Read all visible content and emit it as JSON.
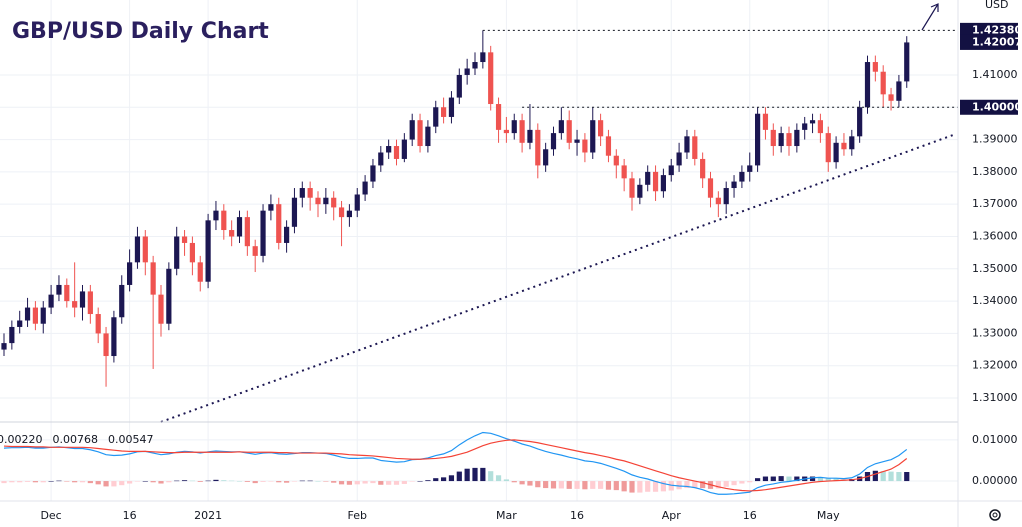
{
  "chart_data": [
    {
      "type": "candlestick",
      "title": "GBP/USD Daily Chart",
      "y_axis_label": "USD",
      "categories": [
        null,
        null,
        null,
        null,
        null,
        null,
        "Dec",
        null,
        null,
        null,
        null,
        null,
        null,
        null,
        null,
        null,
        "16",
        null,
        null,
        null,
        null,
        null,
        null,
        null,
        null,
        null,
        "2021",
        null,
        null,
        null,
        null,
        null,
        null,
        null,
        null,
        null,
        null,
        null,
        null,
        null,
        null,
        null,
        null,
        null,
        null,
        "Feb",
        null,
        null,
        null,
        null,
        null,
        null,
        null,
        null,
        null,
        null,
        null,
        null,
        null,
        null,
        null,
        null,
        null,
        null,
        "Mar",
        null,
        null,
        null,
        null,
        null,
        null,
        null,
        null,
        "16",
        null,
        null,
        null,
        null,
        null,
        null,
        null,
        null,
        null,
        null,
        null,
        "Apr",
        null,
        null,
        null,
        null,
        null,
        null,
        null,
        null,
        null,
        "16",
        null,
        null,
        null,
        null,
        null,
        null,
        null,
        null,
        null,
        "May",
        null,
        null,
        null,
        null,
        null,
        null,
        null,
        null,
        null,
        null
      ],
      "open": [
        1.325,
        1.327,
        1.332,
        1.334,
        1.338,
        1.333,
        1.338,
        1.342,
        1.345,
        1.34,
        1.338,
        1.343,
        1.336,
        1.33,
        1.323,
        1.335,
        1.345,
        1.352,
        1.36,
        1.352,
        1.342,
        1.333,
        1.35,
        1.36,
        1.358,
        1.352,
        1.346,
        1.365,
        1.368,
        1.362,
        1.36,
        1.366,
        1.357,
        1.354,
        1.368,
        1.37,
        1.358,
        1.363,
        1.372,
        1.375,
        1.372,
        1.37,
        1.372,
        1.369,
        1.366,
        1.368,
        1.373,
        1.377,
        1.382,
        1.386,
        1.388,
        1.384,
        1.39,
        1.396,
        1.388,
        1.394,
        1.4,
        1.397,
        1.403,
        1.41,
        1.412,
        1.414,
        1.417,
        1.401,
        1.393,
        1.392,
        1.396,
        1.389,
        1.393,
        1.382,
        1.387,
        1.392,
        1.396,
        1.389,
        1.39,
        1.386,
        1.396,
        1.391,
        1.385,
        1.382,
        1.378,
        1.372,
        1.376,
        1.38,
        1.374,
        1.379,
        1.382,
        1.386,
        1.391,
        1.384,
        1.378,
        1.372,
        1.37,
        1.375,
        1.377,
        1.38,
        1.382,
        1.398,
        1.393,
        1.388,
        1.392,
        1.388,
        1.393,
        1.395,
        1.396,
        1.392,
        1.383,
        1.389,
        1.387,
        1.391,
        1.4,
        1.414,
        1.411,
        1.404,
        1.402,
        1.408
      ],
      "high": [
        1.33,
        1.334,
        1.337,
        1.341,
        1.34,
        1.34,
        1.345,
        1.348,
        1.347,
        1.352,
        1.345,
        1.345,
        1.338,
        1.332,
        1.337,
        1.348,
        1.356,
        1.363,
        1.362,
        1.354,
        1.345,
        1.352,
        1.363,
        1.362,
        1.36,
        1.354,
        1.367,
        1.371,
        1.37,
        1.365,
        1.368,
        1.368,
        1.359,
        1.37,
        1.373,
        1.372,
        1.365,
        1.375,
        1.377,
        1.377,
        1.374,
        1.375,
        1.374,
        1.371,
        1.37,
        1.375,
        1.379,
        1.384,
        1.388,
        1.39,
        1.39,
        1.392,
        1.398,
        1.398,
        1.396,
        1.402,
        1.403,
        1.405,
        1.412,
        1.415,
        1.417,
        1.4238,
        1.419,
        1.403,
        1.397,
        1.398,
        1.398,
        1.401,
        1.395,
        1.389,
        1.394,
        1.4,
        1.399,
        1.393,
        1.392,
        1.4,
        1.398,
        1.393,
        1.387,
        1.384,
        1.38,
        1.378,
        1.382,
        1.382,
        1.381,
        1.384,
        1.389,
        1.393,
        1.393,
        1.386,
        1.38,
        1.374,
        1.377,
        1.379,
        1.382,
        1.386,
        1.4,
        1.4,
        1.395,
        1.394,
        1.394,
        1.395,
        1.397,
        1.398,
        1.398,
        1.394,
        1.391,
        1.392,
        1.393,
        1.402,
        1.416,
        1.416,
        1.413,
        1.406,
        1.41,
        1.422
      ],
      "low": [
        1.323,
        1.325,
        1.33,
        1.332,
        1.331,
        1.33,
        1.336,
        1.34,
        1.338,
        1.335,
        1.334,
        1.333,
        1.327,
        1.3135,
        1.321,
        1.333,
        1.343,
        1.35,
        1.348,
        1.319,
        1.329,
        1.331,
        1.348,
        1.354,
        1.348,
        1.343,
        1.344,
        1.362,
        1.359,
        1.357,
        1.358,
        1.354,
        1.349,
        1.352,
        1.365,
        1.356,
        1.355,
        1.361,
        1.369,
        1.368,
        1.366,
        1.367,
        1.365,
        1.357,
        1.363,
        1.366,
        1.371,
        1.375,
        1.38,
        1.384,
        1.382,
        1.383,
        1.388,
        1.386,
        1.386,
        1.392,
        1.395,
        1.395,
        1.401,
        1.407,
        1.41,
        1.412,
        1.399,
        1.389,
        1.389,
        1.39,
        1.386,
        1.387,
        1.378,
        1.38,
        1.385,
        1.39,
        1.387,
        1.385,
        1.383,
        1.384,
        1.388,
        1.383,
        1.378,
        1.374,
        1.368,
        1.37,
        1.374,
        1.371,
        1.372,
        1.377,
        1.38,
        1.384,
        1.382,
        1.375,
        1.369,
        1.366,
        1.367,
        1.372,
        1.375,
        1.377,
        1.38,
        1.39,
        1.385,
        1.386,
        1.385,
        1.386,
        1.39,
        1.392,
        1.389,
        1.38,
        1.381,
        1.385,
        1.385,
        1.389,
        1.398,
        1.408,
        1.4,
        1.399,
        1.4,
        1.406
      ],
      "close": [
        1.327,
        1.332,
        1.334,
        1.338,
        1.333,
        1.338,
        1.342,
        1.345,
        1.34,
        1.338,
        1.343,
        1.336,
        1.33,
        1.323,
        1.335,
        1.345,
        1.352,
        1.36,
        1.352,
        1.342,
        1.333,
        1.35,
        1.36,
        1.358,
        1.352,
        1.346,
        1.365,
        1.368,
        1.362,
        1.36,
        1.366,
        1.357,
        1.354,
        1.368,
        1.37,
        1.358,
        1.363,
        1.372,
        1.375,
        1.372,
        1.37,
        1.372,
        1.369,
        1.366,
        1.368,
        1.373,
        1.377,
        1.382,
        1.386,
        1.388,
        1.384,
        1.39,
        1.396,
        1.388,
        1.394,
        1.4,
        1.397,
        1.403,
        1.41,
        1.412,
        1.414,
        1.417,
        1.401,
        1.393,
        1.392,
        1.396,
        1.389,
        1.393,
        1.382,
        1.387,
        1.392,
        1.396,
        1.389,
        1.39,
        1.386,
        1.396,
        1.391,
        1.385,
        1.382,
        1.378,
        1.372,
        1.376,
        1.38,
        1.374,
        1.379,
        1.382,
        1.386,
        1.391,
        1.384,
        1.378,
        1.372,
        1.37,
        1.375,
        1.377,
        1.38,
        1.382,
        1.398,
        1.393,
        1.388,
        1.392,
        1.388,
        1.393,
        1.395,
        1.396,
        1.392,
        1.383,
        1.389,
        1.387,
        1.391,
        1.4,
        1.414,
        1.411,
        1.404,
        1.402,
        1.408,
        1.42007
      ],
      "up_color": "#1c1752",
      "down_color": "#ef5350",
      "ylim": [
        1.3032,
        1.4332
      ],
      "yticks": [
        {
          "value": 1.31,
          "label": "1.31000"
        },
        {
          "value": 1.32,
          "label": "1.32000"
        },
        {
          "value": 1.33,
          "label": "1.33000"
        },
        {
          "value": 1.34,
          "label": "1.34000"
        },
        {
          "value": 1.35,
          "label": "1.35000"
        },
        {
          "value": 1.36,
          "label": "1.36000"
        },
        {
          "value": 1.37,
          "label": "1.37000"
        },
        {
          "value": 1.38,
          "label": "1.38000"
        },
        {
          "value": 1.39,
          "label": "1.39000"
        },
        {
          "value": 1.4,
          "label": "1.40000"
        },
        {
          "value": 1.41,
          "label": "1.41000"
        }
      ],
      "grid": true,
      "grid_color": "#eef1f6",
      "levels": [
        {
          "value": 1.4238,
          "label": "1.42380",
          "from": 61
        },
        {
          "value": 1.4,
          "label": "1.40000",
          "from": 66
        }
      ],
      "last_price": {
        "value": 1.42007,
        "label": "1.42007"
      },
      "label_color": "#131142",
      "trendline": {
        "x": [
          20,
          121
        ],
        "y": [
          1.3026,
          1.3915
        ],
        "color": "#1c1752"
      }
    },
    {
      "type": "macd",
      "series": [
        {
          "style": "histogram",
          "last_label": "0.00220",
          "color": "#131722",
          "colors": [
            "#1e1b5e",
            "#b2dfdb",
            "#ef9a9a",
            "#ffcdd2"
          ],
          "values": [
            -0.0005,
            -0.0003,
            -0.0003,
            -0.0002,
            -0.0003,
            -0.0003,
            0,
            0.0001,
            -0.0001,
            -0.0003,
            -0.0003,
            -0.0005,
            -0.0008,
            -0.0013,
            -0.0013,
            -0.001,
            -0.0006,
            -0.0001,
            0,
            -0.0003,
            -0.0006,
            -0.0003,
            0.0001,
            0.0002,
            0.0001,
            -0.0002,
            0.0001,
            0.0003,
            0.0002,
            0.0001,
            0,
            -0.0002,
            -0.0005,
            -0.0002,
            -0.0001,
            -0.0003,
            -0.0004,
            -0.0001,
            0.0001,
            0.0001,
            0,
            -0.0001,
            -0.0004,
            -0.0008,
            -0.0009,
            -0.0008,
            -0.0006,
            -0.0005,
            -0.0009,
            -0.0009,
            -0.0009,
            -0.0007,
            -0.0001,
            0,
            0.0002,
            0.0007,
            0.0009,
            0.0014,
            0.0023,
            0.003,
            0.0032,
            0.0032,
            0.0024,
            0.0014,
            0.0004,
            -0.0003,
            -0.0008,
            -0.0011,
            -0.0015,
            -0.0017,
            -0.0018,
            -0.0018,
            -0.0019,
            -0.0019,
            -0.002,
            -0.0019,
            -0.0019,
            -0.0021,
            -0.0022,
            -0.0025,
            -0.0028,
            -0.0028,
            -0.0026,
            -0.0026,
            -0.0025,
            -0.0023,
            -0.002,
            -0.0017,
            -0.0016,
            -0.0017,
            -0.0019,
            -0.0018,
            -0.0014,
            -0.001,
            -0.0006,
            -0.0003,
            0.0007,
            0.0011,
            0.0011,
            0.0012,
            0.0011,
            0.0011,
            0.0011,
            0.0011,
            0.001,
            0.0007,
            0.0006,
            0.0004,
            0.0005,
            0.0011,
            0.0022,
            0.0025,
            0.0024,
            0.0023,
            0.0022,
            0.0022
          ]
        },
        {
          "style": "line",
          "last_label": "0.00768",
          "color": "#2196f3",
          "values": [
            0.008,
            0.0081,
            0.0081,
            0.0082,
            0.008,
            0.008,
            0.0082,
            0.0083,
            0.0081,
            0.0079,
            0.0079,
            0.0076,
            0.0071,
            0.0064,
            0.0062,
            0.0063,
            0.0066,
            0.0071,
            0.0072,
            0.0068,
            0.0064,
            0.0066,
            0.007,
            0.0072,
            0.0071,
            0.0068,
            0.0071,
            0.0073,
            0.0072,
            0.0071,
            0.0071,
            0.0068,
            0.0065,
            0.0068,
            0.0069,
            0.0066,
            0.0065,
            0.0067,
            0.0069,
            0.0069,
            0.0068,
            0.0067,
            0.0063,
            0.0058,
            0.0055,
            0.0055,
            0.0056,
            0.0056,
            0.005,
            0.0048,
            0.0046,
            0.0047,
            0.0052,
            0.0053,
            0.0056,
            0.0062,
            0.0066,
            0.0074,
            0.0088,
            0.01,
            0.011,
            0.0118,
            0.0116,
            0.011,
            0.0103,
            0.0097,
            0.009,
            0.0085,
            0.0078,
            0.0072,
            0.0067,
            0.0063,
            0.0058,
            0.0054,
            0.0049,
            0.0047,
            0.0043,
            0.0037,
            0.0031,
            0.0024,
            0.0015,
            0.0009,
            0.0005,
            -0.0001,
            -0.0006,
            -0.001,
            -0.0012,
            -0.0013,
            -0.0016,
            -0.0021,
            -0.0028,
            -0.0032,
            -0.0032,
            -0.0031,
            -0.0029,
            -0.0027,
            -0.0016,
            -0.001,
            -0.0007,
            -0.0003,
            -0.0001,
            0.0002,
            0.0005,
            0.0008,
            0.0009,
            0.0007,
            0.0007,
            0.0006,
            0.0008,
            0.0017,
            0.0033,
            0.0042,
            0.0047,
            0.0052,
            0.0062,
            0.00768
          ]
        },
        {
          "style": "line",
          "last_label": "0.00547",
          "color": "#f44336",
          "values": [
            0.0085,
            0.0084,
            0.0084,
            0.0084,
            0.0083,
            0.0083,
            0.0082,
            0.0082,
            0.0082,
            0.0082,
            0.0082,
            0.0081,
            0.0079,
            0.0077,
            0.0075,
            0.0073,
            0.0072,
            0.0072,
            0.0072,
            0.0071,
            0.007,
            0.0069,
            0.0069,
            0.007,
            0.007,
            0.007,
            0.007,
            0.007,
            0.007,
            0.007,
            0.0071,
            0.007,
            0.007,
            0.007,
            0.007,
            0.0069,
            0.0069,
            0.0068,
            0.0068,
            0.0068,
            0.0068,
            0.0068,
            0.0067,
            0.0066,
            0.0064,
            0.0063,
            0.0062,
            0.0061,
            0.0059,
            0.0057,
            0.0055,
            0.0054,
            0.0053,
            0.0053,
            0.0054,
            0.0055,
            0.0057,
            0.006,
            0.0065,
            0.007,
            0.0078,
            0.0086,
            0.0092,
            0.0096,
            0.0099,
            0.01,
            0.0098,
            0.0096,
            0.0093,
            0.0089,
            0.0085,
            0.0081,
            0.0077,
            0.0073,
            0.0069,
            0.0066,
            0.0062,
            0.0058,
            0.0053,
            0.0049,
            0.0043,
            0.0037,
            0.0031,
            0.0025,
            0.0019,
            0.0013,
            0.0008,
            0.0004,
            0,
            -0.0004,
            -0.0009,
            -0.0014,
            -0.0018,
            -0.0021,
            -0.0023,
            -0.0024,
            -0.0023,
            -0.0021,
            -0.0018,
            -0.0015,
            -0.0012,
            -0.0009,
            -0.0006,
            -0.0003,
            -0.0001,
            0,
            0.0001,
            0.0002,
            0.0003,
            0.0006,
            0.0011,
            0.0017,
            0.0023,
            0.0029,
            0.004,
            0.00547
          ]
        }
      ],
      "ylim": [
        -0.0046,
        0.0141
      ],
      "yticks": [
        {
          "value": 0.01,
          "label": "0.01000"
        },
        {
          "value": 0,
          "label": "0.00000"
        }
      ]
    }
  ]
}
